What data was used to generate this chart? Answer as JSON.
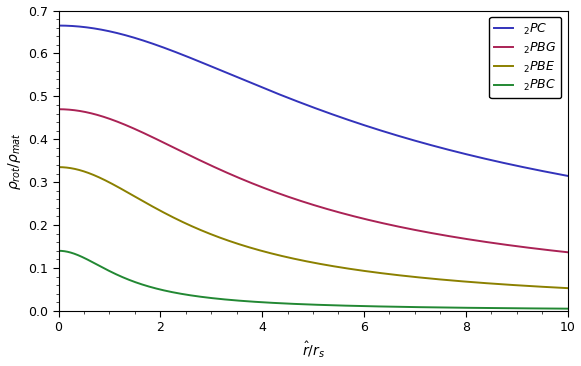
{
  "title": "",
  "xlabel": "$\\hat{r}/r_s$",
  "ylabel": "$\\rho_{rot}/\\rho_{mat}$",
  "xlim": [
    0,
    10
  ],
  "ylim": [
    0.0,
    0.7
  ],
  "yticks": [
    0.0,
    0.1,
    0.2,
    0.3,
    0.4,
    0.5,
    0.6,
    0.7
  ],
  "xticks": [
    0,
    2,
    4,
    6,
    8,
    10
  ],
  "lines": [
    {
      "label": "$_2PC$",
      "color": "#3333bb",
      "y0": 0.665,
      "r_scale": 4.5,
      "power": 0.42
    },
    {
      "label": "$_2PBG$",
      "color": "#aa2255",
      "y0": 0.47,
      "r_scale": 3.2,
      "power": 0.52
    },
    {
      "label": "$_2PBE$",
      "color": "#8b8000",
      "y0": 0.335,
      "r_scale": 2.2,
      "power": 0.6
    },
    {
      "label": "$_2PBC$",
      "color": "#228833",
      "y0": 0.14,
      "r_scale": 1.2,
      "power": 0.78
    }
  ],
  "background_color": "#ffffff",
  "legend_loc": "upper right",
  "legend_fontsize": 9,
  "axis_fontsize": 10,
  "tick_fontsize": 9,
  "linewidth": 1.4
}
